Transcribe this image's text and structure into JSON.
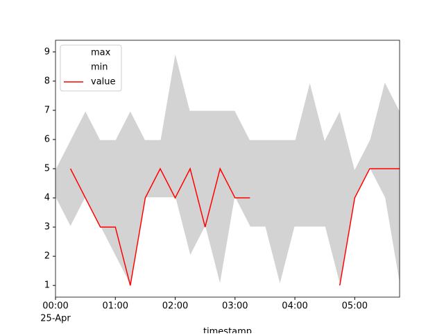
{
  "chart_data": {
    "type": "line",
    "x": [
      "00:00",
      "00:15",
      "00:30",
      "00:45",
      "01:00",
      "01:15",
      "01:30",
      "01:45",
      "02:00",
      "02:15",
      "02:30",
      "02:45",
      "03:00",
      "03:15",
      "03:30",
      "03:45",
      "04:00",
      "04:15",
      "04:30",
      "04:45",
      "05:00",
      "05:15",
      "05:30",
      "05:45"
    ],
    "series": [
      {
        "name": "max",
        "color": "#ffffff",
        "values": [
          5,
          6,
          7,
          6,
          6,
          7,
          6,
          6,
          9,
          7,
          7,
          7,
          7,
          6,
          6,
          6,
          6,
          8,
          6,
          7,
          5,
          6,
          8,
          7
        ]
      },
      {
        "name": "min",
        "color": "#ffffff",
        "values": [
          4,
          3,
          4,
          3,
          2,
          1,
          4,
          4,
          4,
          2,
          3,
          1,
          4,
          3,
          3,
          1,
          3,
          3,
          3,
          1,
          4,
          5,
          4,
          1
        ]
      },
      {
        "name": "value",
        "color": "#ff0000",
        "values": [
          null,
          5,
          4,
          3,
          3,
          1,
          4,
          5,
          4,
          5,
          3,
          5,
          4,
          4,
          null,
          null,
          null,
          null,
          null,
          1,
          4,
          5,
          5,
          5
        ]
      }
    ],
    "fill_between": [
      "max",
      "min"
    ],
    "fill_color": "#d3d3d3",
    "xlim": [
      "00:00",
      "05:45"
    ],
    "xticks": [
      "00:00",
      "01:00",
      "02:00",
      "03:00",
      "04:00",
      "05:00"
    ],
    "x_date_label": "25-Apr",
    "xlabel": "timestamp",
    "ylim": [
      0.6,
      9.4
    ],
    "yticks": [
      1,
      2,
      3,
      4,
      5,
      6,
      7,
      8,
      9
    ],
    "legend": "upper left"
  }
}
